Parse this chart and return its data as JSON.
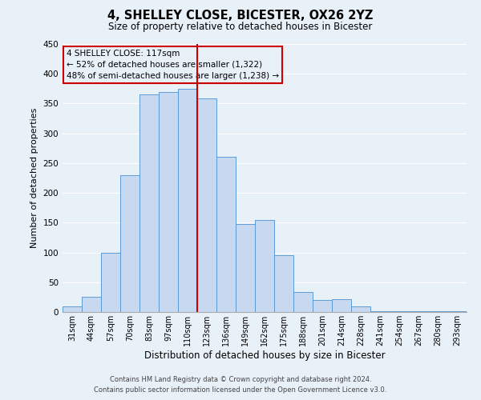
{
  "title": "4, SHELLEY CLOSE, BICESTER, OX26 2YZ",
  "subtitle": "Size of property relative to detached houses in Bicester",
  "xlabel": "Distribution of detached houses by size in Bicester",
  "ylabel": "Number of detached properties",
  "bar_labels": [
    "31sqm",
    "44sqm",
    "57sqm",
    "70sqm",
    "83sqm",
    "97sqm",
    "110sqm",
    "123sqm",
    "136sqm",
    "149sqm",
    "162sqm",
    "175sqm",
    "188sqm",
    "201sqm",
    "214sqm",
    "228sqm",
    "241sqm",
    "254sqm",
    "267sqm",
    "280sqm",
    "293sqm"
  ],
  "bar_heights": [
    10,
    25,
    100,
    230,
    365,
    370,
    375,
    358,
    260,
    148,
    155,
    95,
    34,
    20,
    22,
    10,
    2,
    1,
    1,
    1,
    1
  ],
  "bar_color": "#c6d9f0",
  "bar_edge_color": "#5b9bd5",
  "vline_x_idx": 7,
  "vline_color": "#cc0000",
  "annotation_line1": "4 SHELLEY CLOSE: 117sqm",
  "annotation_line2": "← 52% of detached houses are smaller (1,322)",
  "annotation_line3": "48% of semi-detached houses are larger (1,238) →",
  "annotation_box_edge_color": "#cc0000",
  "ylim": [
    0,
    450
  ],
  "yticks": [
    0,
    50,
    100,
    150,
    200,
    250,
    300,
    350,
    400,
    450
  ],
  "footer_line1": "Contains HM Land Registry data © Crown copyright and database right 2024.",
  "footer_line2": "Contains public sector information licensed under the Open Government Licence v3.0.",
  "bg_color": "#e8f0f8",
  "plot_bg_color": "#e8f0f8",
  "grid_color": "#ffffff"
}
